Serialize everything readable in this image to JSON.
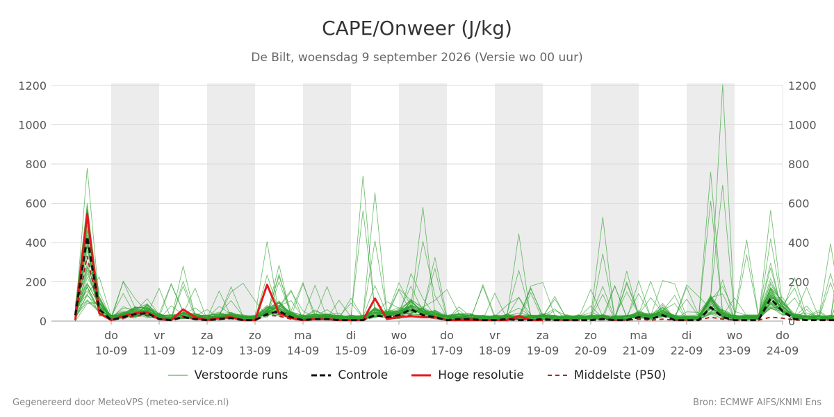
{
  "chart_data": {
    "type": "line",
    "title": "CAPE/Onweer (J/kg)",
    "subtitle": "De Bilt, woensdag  9 september 2026 (Versie wo 00 uur)",
    "ylim": [
      0,
      1200
    ],
    "y_ticks": [
      0,
      200,
      400,
      600,
      800,
      1000,
      1200
    ],
    "grid": true,
    "x_ticks": [
      {
        "day": "do",
        "date": "10-09"
      },
      {
        "day": "vr",
        "date": "11-09"
      },
      {
        "day": "za",
        "date": "12-09"
      },
      {
        "day": "zo",
        "date": "13-09"
      },
      {
        "day": "ma",
        "date": "14-09"
      },
      {
        "day": "di",
        "date": "15-09"
      },
      {
        "day": "wo",
        "date": "16-09"
      },
      {
        "day": "do",
        "date": "17-09"
      },
      {
        "day": "vr",
        "date": "18-09"
      },
      {
        "day": "za",
        "date": "19-09"
      },
      {
        "day": "zo",
        "date": "20-09"
      },
      {
        "day": "ma",
        "date": "21-09"
      },
      {
        "day": "di",
        "date": "22-09"
      },
      {
        "day": "wo",
        "date": "23-09"
      },
      {
        "day": "do",
        "date": "24-09"
      }
    ],
    "weekend_shading": [
      [
        "10-09",
        "11-09"
      ],
      [
        "12-09",
        "13-09"
      ],
      [
        "14-09",
        "15-09"
      ],
      [
        "16-09",
        "17-09"
      ],
      [
        "18-09",
        "19-09"
      ],
      [
        "20-09",
        "21-09"
      ],
      [
        "22-09",
        "23-09"
      ]
    ],
    "x_start": "09-09 18:00",
    "step_hours": 6,
    "series": [
      {
        "name": "Controle",
        "style": "dashed",
        "color": "#111111",
        "values": [
          30,
          430,
          60,
          5,
          20,
          35,
          40,
          10,
          5,
          20,
          10,
          5,
          10,
          15,
          5,
          5,
          35,
          50,
          20,
          5,
          10,
          10,
          5,
          5,
          5,
          30,
          20,
          30,
          60,
          30,
          20,
          5,
          10,
          10,
          5,
          5,
          10,
          5,
          5,
          10,
          5,
          5,
          5,
          5,
          10,
          5,
          5,
          20,
          10,
          30,
          5,
          5,
          5,
          70,
          20,
          5,
          5,
          5,
          115,
          50,
          10,
          5,
          5,
          5,
          5,
          10,
          5,
          5
        ]
      },
      {
        "name": "Hoge resolutie",
        "style": "solid",
        "color": "#e31a1c",
        "values": [
          5,
          545,
          40,
          5,
          25,
          40,
          45,
          10,
          5,
          60,
          20,
          5,
          15,
          20,
          5,
          5,
          185,
          40,
          15,
          5,
          10,
          10,
          5,
          5,
          5,
          115,
          10,
          20,
          25,
          20,
          20,
          5,
          5,
          5,
          5,
          5,
          5,
          25,
          5,
          5
        ]
      },
      {
        "name": "Middelste (P50)",
        "style": "dashed",
        "color": "#b22222",
        "values": [
          20,
          330,
          40,
          5,
          15,
          25,
          30,
          10,
          5,
          25,
          10,
          5,
          10,
          15,
          5,
          5,
          30,
          25,
          10,
          5,
          10,
          10,
          5,
          5,
          5,
          30,
          20,
          25,
          30,
          20,
          15,
          5,
          10,
          10,
          5,
          5,
          10,
          10,
          5,
          5,
          5,
          5,
          5,
          5,
          10,
          5,
          5,
          10,
          5,
          10,
          5,
          5,
          5,
          20,
          10,
          5,
          5,
          5,
          20,
          15,
          5,
          5,
          5,
          5,
          5,
          10,
          5,
          5
        ]
      }
    ],
    "ensemble": {
      "name": "Verstoorde runs",
      "color": "#2ca02c",
      "peak_values": [
        [
          1,
          780
        ],
        [
          9,
          280
        ],
        [
          16,
          405
        ],
        [
          17,
          285
        ],
        [
          24,
          740
        ],
        [
          25,
          655
        ],
        [
          29,
          580
        ],
        [
          30,
          325
        ],
        [
          37,
          445
        ],
        [
          44,
          530
        ],
        [
          46,
          255
        ],
        [
          50,
          190
        ],
        [
          53,
          760
        ],
        [
          54,
          1205
        ],
        [
          56,
          415
        ],
        [
          58,
          565
        ],
        [
          60,
          220
        ],
        [
          63,
          395
        ],
        [
          64,
          475
        ],
        [
          65,
          270
        ]
      ]
    }
  },
  "legend": {
    "ensemble_label": "Verstoorde runs",
    "control_label": "Controle",
    "hires_label": "Hoge resolutie",
    "median_label": "Middelste (P50)"
  },
  "footer": {
    "left": "Gegenereerd door MeteoVPS (meteo-service.nl)",
    "right": "Bron: ECMWF AIFS/KNMI Ens"
  },
  "colors": {
    "ensemble": "#2ca02c",
    "control": "#111111",
    "hires": "#e31a1c",
    "median": "#b22222",
    "weekend": "#ececec",
    "grid": "#d9d9d9"
  }
}
